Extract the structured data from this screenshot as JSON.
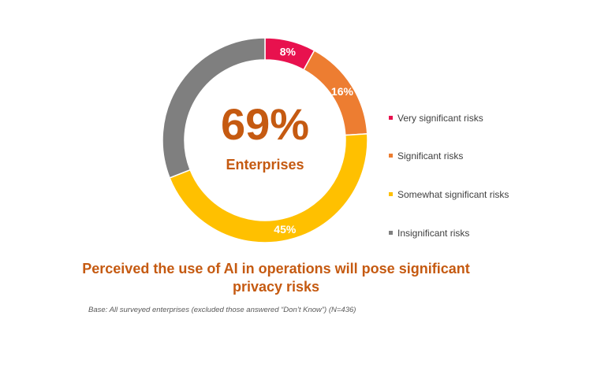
{
  "chart_data": {
    "type": "pie",
    "subtype": "donut",
    "center": {
      "value": "69%",
      "label": "Enterprises"
    },
    "slices": [
      {
        "name": "Very significant risks",
        "value": 8,
        "label": "8%",
        "color": "#e8114e"
      },
      {
        "name": "Significant risks",
        "value": 16,
        "label": "16%",
        "color": "#ed7d31"
      },
      {
        "name": "Somewhat significant risks",
        "value": 45,
        "label": "45%",
        "color": "#ffc000"
      },
      {
        "name": "Insignificant risks",
        "value": 31,
        "label": "",
        "color": "#7f7f7f"
      }
    ],
    "legend_position": "right",
    "title": "Perceived the use of AI in operations will pose significant privacy risks",
    "note": "Base: All surveyed enterprises (excluded those answered “Don’t Know”) (N=436)"
  }
}
